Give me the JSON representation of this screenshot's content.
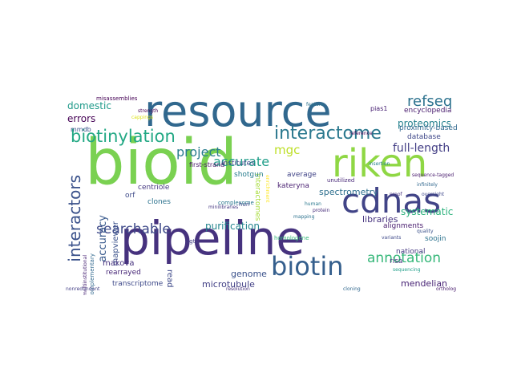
{
  "words": [
    {
      "text": "resource",
      "color": "#31688e"
    },
    {
      "text": "bioid",
      "color": "#7ad151"
    },
    {
      "text": "pipeline",
      "color": "#46327e"
    },
    {
      "text": "riken",
      "color": "#8fd744"
    },
    {
      "text": "cdnas",
      "color": "#414487"
    },
    {
      "text": "biotin",
      "color": "#355f8d"
    },
    {
      "text": "biotinylation",
      "color": "#22a884"
    },
    {
      "text": "interactome",
      "color": "#2a788e"
    },
    {
      "text": "refseq",
      "color": "#2c728e"
    },
    {
      "text": "interactors",
      "color": "#3b528b"
    },
    {
      "text": "searchable",
      "color": "#3e4989"
    },
    {
      "text": "annotation",
      "color": "#35b779"
    },
    {
      "text": "accurate",
      "color": "#1f9e89"
    },
    {
      "text": "project",
      "color": "#287c8e"
    },
    {
      "text": "mgc",
      "color": "#bddf26"
    },
    {
      "text": "full-length",
      "color": "#433e85"
    },
    {
      "text": "systematic",
      "color": "#2db27d"
    },
    {
      "text": "proteomics",
      "color": "#26828e"
    },
    {
      "text": "domestic",
      "color": "#1f9a8a"
    },
    {
      "text": "errors",
      "color": "#440154"
    },
    {
      "text": "accuracy",
      "color": "#38598c"
    },
    {
      "text": "purification",
      "color": "#25858e"
    },
    {
      "text": "genome",
      "color": "#3b528b"
    },
    {
      "text": "microtubule",
      "color": "#424086"
    },
    {
      "text": "mendelian",
      "color": "#482475"
    },
    {
      "text": "libraries",
      "color": "#46327e"
    },
    {
      "text": "spectrometry",
      "color": "#2e6f8e"
    },
    {
      "text": "database",
      "color": "#3f4889"
    },
    {
      "text": "proximity-based",
      "color": "#31688e"
    },
    {
      "text": "encyclopedia",
      "color": "#481b6d"
    },
    {
      "text": "interactomes",
      "color": "#a5db36"
    },
    {
      "text": "mapviewer",
      "color": "#3b528b"
    },
    {
      "text": "makova",
      "color": "#46327e"
    },
    {
      "text": "transcriptome",
      "color": "#3e4989"
    },
    {
      "text": "rearrayed",
      "color": "#482878"
    },
    {
      "text": "clones",
      "color": "#2c728e"
    },
    {
      "text": "orf",
      "color": "#3e4a89"
    },
    {
      "text": "centriole",
      "color": "#453781"
    },
    {
      "text": "shotgun",
      "color": "#287d8e"
    },
    {
      "text": "kateryna",
      "color": "#481f70"
    },
    {
      "text": "average",
      "color": "#414487"
    },
    {
      "text": "institutes",
      "color": "#3f4889"
    },
    {
      "text": "first-strand",
      "color": "#481467"
    },
    {
      "text": "pias1",
      "color": "#482173"
    },
    {
      "text": "mmdb",
      "color": "#3b528b"
    },
    {
      "text": "national",
      "color": "#453882"
    },
    {
      "text": "risa",
      "color": "#46327e"
    },
    {
      "text": "soojin",
      "color": "#2c728e"
    },
    {
      "text": "alignments",
      "color": "#481c6e"
    },
    {
      "text": "read",
      "color": "#3e4989"
    },
    {
      "text": "ogt1",
      "color": "#433e85"
    },
    {
      "text": "complementary",
      "color": "#31688e"
    },
    {
      "text": "multiinstitutional",
      "color": "#482475"
    },
    {
      "text": "complexome",
      "color": "#2a788e"
    },
    {
      "text": "unutilized",
      "color": "#482878"
    },
    {
      "text": "misassemblies",
      "color": "#440154"
    },
    {
      "text": "homologene",
      "color": "#35b779"
    },
    {
      "text": "minilibraries",
      "color": "#453781"
    },
    {
      "text": "huri",
      "color": "#3e4a89"
    },
    {
      "text": "infinitely",
      "color": "#31688e"
    },
    {
      "text": "oversight",
      "color": "#3f4889"
    },
    {
      "text": "proof",
      "color": "#46327e"
    },
    {
      "text": "sequence-tagged",
      "color": "#481b6d"
    },
    {
      "text": "feature",
      "color": "#2c728e"
    },
    {
      "text": "enrichment",
      "color": "#fde725"
    },
    {
      "text": "cappings",
      "color": "#dde318"
    },
    {
      "text": "strength",
      "color": "#440154"
    },
    {
      "text": "human",
      "color": "#2a788e"
    },
    {
      "text": "protein",
      "color": "#472c7a"
    },
    {
      "text": "insertion",
      "color": "#26828e"
    },
    {
      "text": "variants",
      "color": "#3e4989"
    },
    {
      "text": "reference",
      "color": "#440154"
    },
    {
      "text": "quality",
      "color": "#3b528b"
    },
    {
      "text": "mapping",
      "color": "#2c728e"
    },
    {
      "text": "resolution",
      "color": "#46327e"
    },
    {
      "text": "cloning",
      "color": "#31688e"
    },
    {
      "text": "sequencing",
      "color": "#1f9e89"
    },
    {
      "text": "nonredundant",
      "color": "#433e85"
    },
    {
      "text": "ortholog",
      "color": "#481b6d"
    }
  ]
}
